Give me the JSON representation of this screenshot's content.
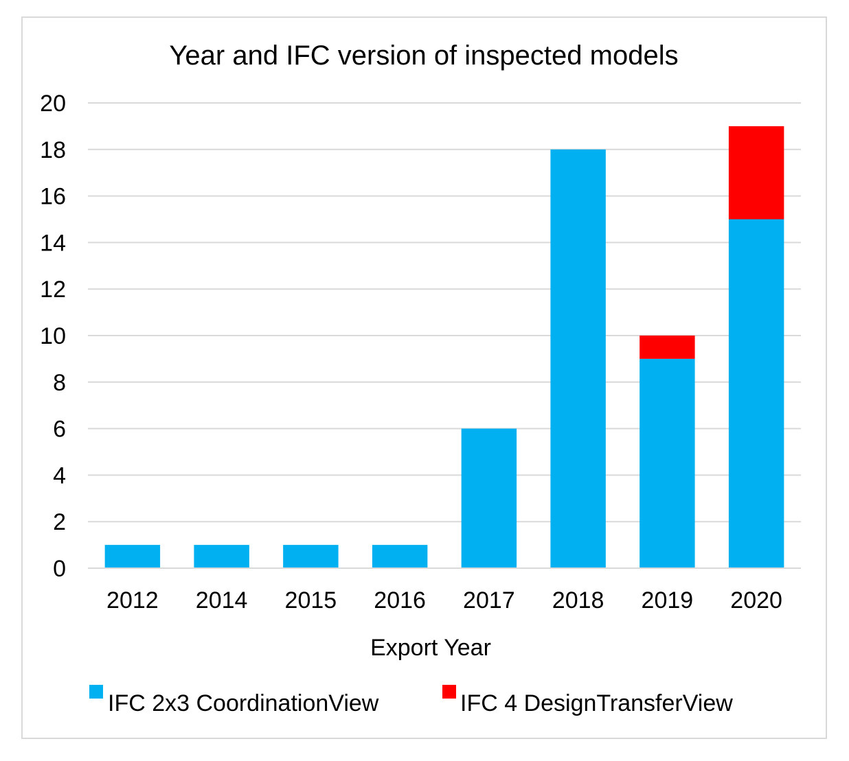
{
  "chart_data": {
    "type": "bar",
    "stacked": true,
    "title": "Year and IFC version of inspected models",
    "xlabel": "Export Year",
    "ylabel": "",
    "categories": [
      "2012",
      "2014",
      "2015",
      "2016",
      "2017",
      "2018",
      "2019",
      "2020"
    ],
    "series": [
      {
        "name": "IFC 2x3 CoordinationView",
        "color": "#00b0f0",
        "values": [
          1,
          1,
          1,
          1,
          6,
          18,
          9,
          15
        ]
      },
      {
        "name": "IFC 4 DesignTransferView",
        "color": "#ff0000",
        "values": [
          0,
          0,
          0,
          0,
          0,
          0,
          1,
          4
        ]
      }
    ],
    "ylim": [
      0,
      20
    ],
    "yticks": [
      "0",
      "2",
      "4",
      "6",
      "8",
      "10",
      "12",
      "14",
      "16",
      "18",
      "20"
    ],
    "grid": true,
    "legend": "bottom"
  }
}
